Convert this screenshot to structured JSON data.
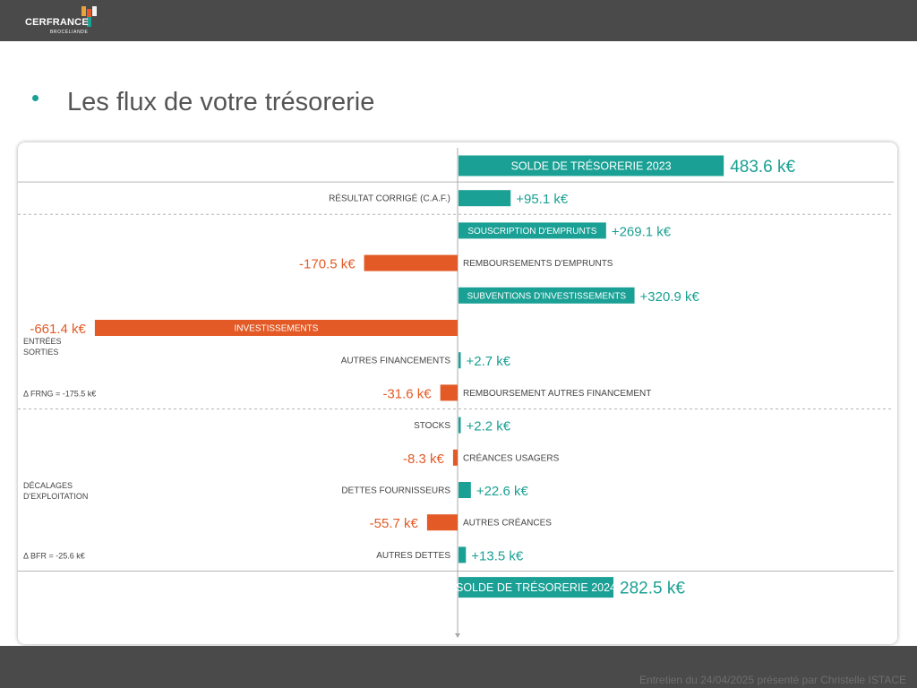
{
  "header": {
    "logo_name": "CERFRANCE",
    "logo_sub": "BROCÉLIANDE",
    "logo_colors": [
      "#e8a33d",
      "#1aa094",
      "#e35a26",
      "#f2f2f2"
    ]
  },
  "slide": {
    "title": "Les flux de votre trésorerie"
  },
  "footer": {
    "text": "Entretien du 24/04/2025 présenté par Christelle ISTACE"
  },
  "colors": {
    "teal": "#1aa094",
    "orange": "#e35a26",
    "text": "#555555"
  },
  "chart_data": {
    "type": "bar",
    "orientation": "horizontal-diverging",
    "unit": "k€",
    "rows": [
      {
        "label": "SOLDE DE TRÉSORERIE 2023",
        "value": 483.6,
        "display": "483.6 k€",
        "kind": "solde"
      },
      {
        "label": "RÉSULTAT CORRIGÉ (C.A.F.)",
        "value": 95.1,
        "display": "+95.1 k€",
        "kind": "flow"
      },
      {
        "label": "SOUSCRIPTION D'EMPRUNTS",
        "value": 269.1,
        "display": "+269.1 k€",
        "kind": "flow"
      },
      {
        "label": "REMBOURSEMENTS D'EMPRUNTS",
        "value": -170.5,
        "display": "-170.5 k€",
        "kind": "flow"
      },
      {
        "label": "SUBVENTIONS D'INVESTISSEMENTS",
        "value": 320.9,
        "display": "+320.9 k€",
        "kind": "flow"
      },
      {
        "label": "INVESTISSEMENTS",
        "value": -661.4,
        "display": "-661.4 k€",
        "kind": "flow"
      },
      {
        "label": "AUTRES FINANCEMENTS",
        "value": 2.7,
        "display": "+2.7 k€",
        "kind": "flow"
      },
      {
        "label": "REMBOURSEMENT AUTRES FINANCEMENT",
        "value": -31.6,
        "display": "-31.6 k€",
        "kind": "flow"
      },
      {
        "label": "STOCKS",
        "value": 2.2,
        "display": "+2.2 k€",
        "kind": "flow"
      },
      {
        "label": "CRÉANCES USAGERS",
        "value": -8.3,
        "display": "-8.3 k€",
        "kind": "flow"
      },
      {
        "label": "DETTES FOURNISSEURS",
        "value": 22.6,
        "display": "+22.6 k€",
        "kind": "flow"
      },
      {
        "label": "AUTRES CRÉANCES",
        "value": -55.7,
        "display": "-55.7 k€",
        "kind": "flow"
      },
      {
        "label": "AUTRES DETTES",
        "value": 13.5,
        "display": "+13.5 k€",
        "kind": "flow"
      },
      {
        "label": "SOLDE DE TRÉSORERIE 2024",
        "value": 282.5,
        "display": "282.5 k€",
        "kind": "solde"
      }
    ],
    "side_annotations": [
      {
        "lines": [
          "ENTRÉES",
          "SORTIES"
        ],
        "after_row": 5
      },
      {
        "lines": [
          "Δ FRNG = -175.5 k€"
        ],
        "at_row": 7
      },
      {
        "lines": [
          "DÉCALAGES",
          "D'EXPLOITATION"
        ],
        "at_row": 10
      },
      {
        "lines": [
          "Δ BFR = -25.6 k€"
        ],
        "at_row": 12
      }
    ],
    "separators_after_rows": [
      0,
      1,
      7,
      12
    ]
  }
}
